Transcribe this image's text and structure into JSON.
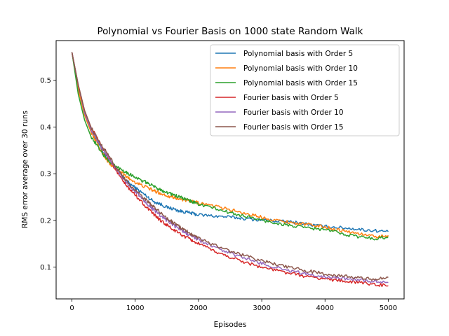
{
  "chart_data": {
    "type": "line",
    "title": "Polynomial vs Fourier Basis on 1000 state Random Walk",
    "xlabel": "Episodes",
    "ylabel": "RMS error average over 30 runs",
    "xlim": [
      -250,
      5250
    ],
    "ylim": [
      0.032,
      0.585
    ],
    "xticks": [
      0,
      1000,
      2000,
      3000,
      4000,
      5000
    ],
    "yticks": [
      0.1,
      0.2,
      0.3,
      0.4,
      0.5
    ],
    "xtick_labels": [
      "0",
      "1000",
      "2000",
      "3000",
      "4000",
      "5000"
    ],
    "ytick_labels": [
      "0.1",
      "0.2",
      "0.3",
      "0.4",
      "0.5"
    ],
    "grid": false,
    "legend_position": "top-right",
    "series": [
      {
        "name": "Polynomial basis with Order 5",
        "color": "#1f77b4",
        "x": [
          0,
          100,
          200,
          300,
          400,
          500,
          600,
          700,
          800,
          900,
          1000,
          1100,
          1200,
          1300,
          1400,
          1500,
          1600,
          1700,
          1800,
          1900,
          2000,
          2200,
          2400,
          2600,
          2800,
          3000,
          3200,
          3400,
          3600,
          3800,
          4000,
          4200,
          4400,
          4600,
          4800,
          5000
        ],
        "y": [
          0.56,
          0.48,
          0.43,
          0.395,
          0.37,
          0.345,
          0.325,
          0.31,
          0.295,
          0.28,
          0.27,
          0.26,
          0.25,
          0.24,
          0.235,
          0.228,
          0.225,
          0.22,
          0.218,
          0.215,
          0.212,
          0.21,
          0.208,
          0.206,
          0.203,
          0.201,
          0.199,
          0.197,
          0.195,
          0.19,
          0.187,
          0.185,
          0.183,
          0.18,
          0.178,
          0.176
        ]
      },
      {
        "name": "Polynomial basis with Order 10",
        "color": "#ff7f0e",
        "x": [
          0,
          100,
          200,
          300,
          400,
          500,
          600,
          700,
          800,
          900,
          1000,
          1100,
          1200,
          1300,
          1400,
          1500,
          1600,
          1700,
          1800,
          1900,
          2000,
          2200,
          2400,
          2600,
          2800,
          3000,
          3200,
          3400,
          3600,
          3800,
          4000,
          4200,
          4400,
          4600,
          4800,
          5000
        ],
        "y": [
          0.56,
          0.48,
          0.425,
          0.39,
          0.365,
          0.34,
          0.32,
          0.31,
          0.3,
          0.29,
          0.282,
          0.275,
          0.27,
          0.263,
          0.258,
          0.253,
          0.25,
          0.246,
          0.243,
          0.24,
          0.238,
          0.232,
          0.226,
          0.22,
          0.213,
          0.207,
          0.201,
          0.197,
          0.193,
          0.19,
          0.186,
          0.18,
          0.175,
          0.17,
          0.165,
          0.168
        ]
      },
      {
        "name": "Polynomial basis with Order 15",
        "color": "#2ca02c",
        "x": [
          0,
          100,
          200,
          300,
          400,
          500,
          600,
          700,
          800,
          900,
          1000,
          1100,
          1200,
          1300,
          1400,
          1500,
          1600,
          1700,
          1800,
          1900,
          2000,
          2200,
          2400,
          2600,
          2800,
          3000,
          3200,
          3400,
          3600,
          3800,
          4000,
          4200,
          4400,
          4600,
          4800,
          5000
        ],
        "y": [
          0.56,
          0.47,
          0.415,
          0.38,
          0.36,
          0.34,
          0.325,
          0.315,
          0.308,
          0.3,
          0.293,
          0.285,
          0.28,
          0.272,
          0.266,
          0.26,
          0.255,
          0.25,
          0.245,
          0.24,
          0.235,
          0.228,
          0.22,
          0.213,
          0.207,
          0.2,
          0.195,
          0.19,
          0.186,
          0.183,
          0.18,
          0.175,
          0.168,
          0.164,
          0.161,
          0.165
        ]
      },
      {
        "name": "Fourier basis with Order 5",
        "color": "#d62728",
        "x": [
          0,
          100,
          200,
          300,
          400,
          500,
          600,
          700,
          800,
          900,
          1000,
          1100,
          1200,
          1300,
          1400,
          1500,
          1600,
          1700,
          1800,
          1900,
          2000,
          2200,
          2400,
          2600,
          2800,
          3000,
          3200,
          3400,
          3600,
          3800,
          4000,
          4200,
          4400,
          4600,
          4800,
          5000
        ],
        "y": [
          0.56,
          0.49,
          0.435,
          0.4,
          0.375,
          0.35,
          0.33,
          0.305,
          0.285,
          0.268,
          0.255,
          0.24,
          0.225,
          0.212,
          0.2,
          0.19,
          0.18,
          0.172,
          0.164,
          0.157,
          0.15,
          0.137,
          0.126,
          0.117,
          0.108,
          0.1,
          0.094,
          0.088,
          0.083,
          0.078,
          0.075,
          0.072,
          0.069,
          0.066,
          0.063,
          0.06
        ]
      },
      {
        "name": "Fourier basis with Order 10",
        "color": "#9467bd",
        "x": [
          0,
          100,
          200,
          300,
          400,
          500,
          600,
          700,
          800,
          900,
          1000,
          1100,
          1200,
          1300,
          1400,
          1500,
          1600,
          1700,
          1800,
          1900,
          2000,
          2200,
          2400,
          2600,
          2800,
          3000,
          3200,
          3400,
          3600,
          3800,
          4000,
          4200,
          4400,
          4600,
          4800,
          5000
        ],
        "y": [
          0.56,
          0.49,
          0.43,
          0.395,
          0.37,
          0.35,
          0.33,
          0.31,
          0.292,
          0.275,
          0.262,
          0.248,
          0.235,
          0.222,
          0.21,
          0.2,
          0.19,
          0.181,
          0.173,
          0.166,
          0.159,
          0.146,
          0.135,
          0.125,
          0.116,
          0.108,
          0.1,
          0.094,
          0.088,
          0.083,
          0.08,
          0.077,
          0.075,
          0.072,
          0.07,
          0.067
        ]
      },
      {
        "name": "Fourier basis with Order 15",
        "color": "#8c564b",
        "x": [
          0,
          100,
          200,
          300,
          400,
          500,
          600,
          700,
          800,
          900,
          1000,
          1100,
          1200,
          1300,
          1400,
          1500,
          1600,
          1700,
          1800,
          1900,
          2000,
          2200,
          2400,
          2600,
          2800,
          3000,
          3200,
          3400,
          3600,
          3800,
          4000,
          4200,
          4400,
          4600,
          4800,
          5000
        ],
        "y": [
          0.56,
          0.49,
          0.435,
          0.4,
          0.375,
          0.355,
          0.335,
          0.312,
          0.294,
          0.278,
          0.265,
          0.252,
          0.24,
          0.228,
          0.216,
          0.205,
          0.195,
          0.186,
          0.178,
          0.17,
          0.163,
          0.15,
          0.139,
          0.13,
          0.122,
          0.114,
          0.107,
          0.1,
          0.095,
          0.09,
          0.086,
          0.082,
          0.079,
          0.076,
          0.074,
          0.078
        ]
      }
    ]
  }
}
